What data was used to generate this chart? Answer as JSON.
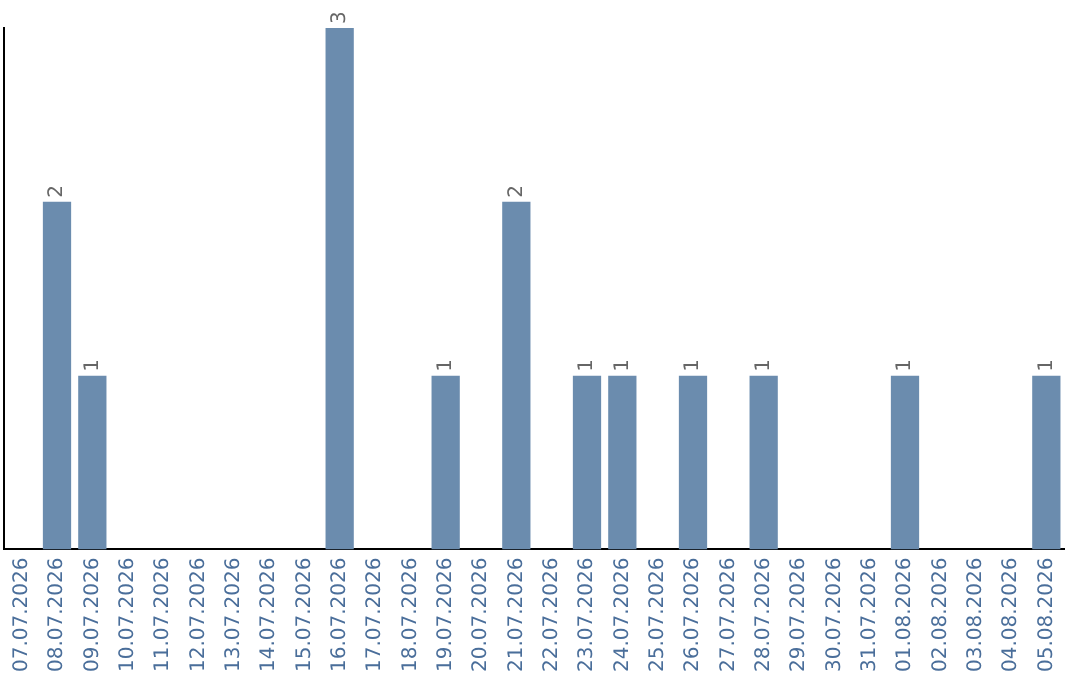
{
  "chart_data": {
    "type": "bar",
    "categories": [
      "07.07.2026",
      "08.07.2026",
      "09.07.2026",
      "10.07.2026",
      "11.07.2026",
      "12.07.2026",
      "13.07.2026",
      "14.07.2026",
      "15.07.2026",
      "16.07.2026",
      "17.07.2026",
      "18.07.2026",
      "19.07.2026",
      "20.07.2026",
      "21.07.2026",
      "22.07.2026",
      "23.07.2026",
      "24.07.2026",
      "25.07.2026",
      "26.07.2026",
      "27.07.2026",
      "28.07.2026",
      "29.07.2026",
      "30.07.2026",
      "31.07.2026",
      "01.08.2026",
      "02.08.2026",
      "03.08.2026",
      "04.08.2026",
      "05.08.2026"
    ],
    "values": [
      0,
      2,
      1,
      0,
      0,
      0,
      0,
      0,
      0,
      3,
      0,
      0,
      1,
      0,
      2,
      0,
      1,
      1,
      0,
      1,
      0,
      1,
      0,
      0,
      0,
      1,
      0,
      0,
      0,
      1
    ],
    "value_labels": [
      null,
      "2",
      "1",
      null,
      null,
      null,
      null,
      null,
      null,
      "3",
      null,
      null,
      "1",
      null,
      "2",
      null,
      "1",
      "1",
      null,
      "1",
      null,
      "1",
      null,
      null,
      null,
      "1",
      null,
      null,
      null,
      "1"
    ],
    "color": "#6b8cae",
    "grid": false,
    "legend": false,
    "tick_labels": "x"
  }
}
